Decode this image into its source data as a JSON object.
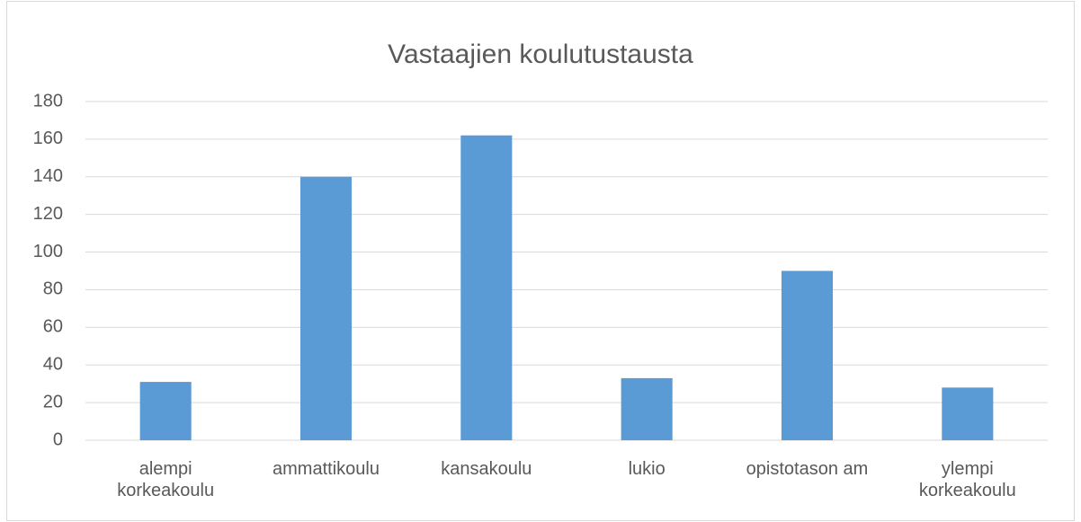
{
  "chart_data": {
    "type": "bar",
    "title": "Vastaajien koulutustausta",
    "categories": [
      "alempi korkeakoulu",
      "ammattikoulu",
      "kansakoulu",
      "lukio",
      "opistotason am",
      "ylempi korkeakoulu"
    ],
    "values": [
      31,
      140,
      162,
      33,
      90,
      28
    ],
    "color": "#5b9bd5",
    "ylim": [
      0,
      180
    ],
    "yticks": [
      0,
      20,
      40,
      60,
      80,
      100,
      120,
      140,
      160,
      180
    ],
    "grid": true
  }
}
